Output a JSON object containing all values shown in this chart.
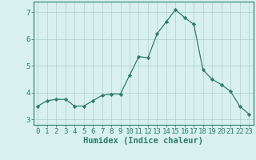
{
  "x": [
    0,
    1,
    2,
    3,
    4,
    5,
    6,
    7,
    8,
    9,
    10,
    11,
    12,
    13,
    14,
    15,
    16,
    17,
    18,
    19,
    20,
    21,
    22,
    23
  ],
  "y": [
    3.5,
    3.7,
    3.75,
    3.75,
    3.5,
    3.5,
    3.7,
    3.9,
    3.95,
    3.95,
    4.65,
    5.35,
    5.3,
    6.2,
    6.65,
    7.1,
    6.8,
    6.55,
    4.85,
    4.5,
    4.3,
    4.05,
    3.5,
    3.2
  ],
  "line_color": "#2e7d6e",
  "marker": "D",
  "marker_size": 2.2,
  "bg_color": "#d8f0f0",
  "grid_color": "#b0cece",
  "xlabel": "Humidex (Indice chaleur)",
  "xlim": [
    -0.5,
    23.5
  ],
  "ylim": [
    2.8,
    7.4
  ],
  "yticks": [
    3,
    4,
    5,
    6,
    7
  ],
  "xticks": [
    0,
    1,
    2,
    3,
    4,
    5,
    6,
    7,
    8,
    9,
    10,
    11,
    12,
    13,
    14,
    15,
    16,
    17,
    18,
    19,
    20,
    21,
    22,
    23
  ],
  "xlabel_fontsize": 7.5,
  "tick_fontsize": 6.5,
  "axis_color": "#2e7d6e",
  "spine_color": "#2e7d6e"
}
